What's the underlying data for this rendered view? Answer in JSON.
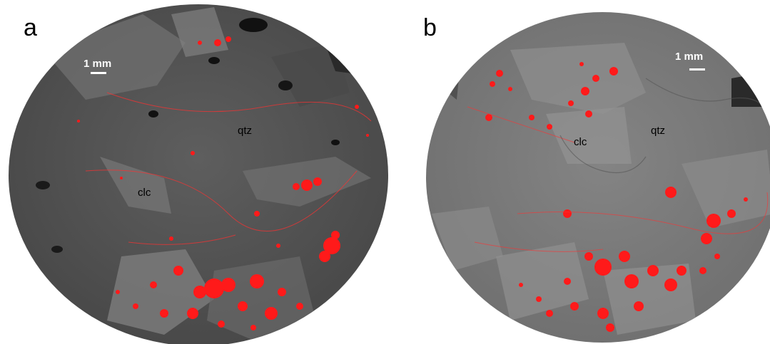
{
  "panels": [
    {
      "label": "a",
      "scale_text": "1 mm",
      "minerals": {
        "qtz": "qtz",
        "clc": "clc"
      }
    },
    {
      "label": "b",
      "scale_text": "1 mm",
      "minerals": {
        "qtz": "qtz",
        "clc": "clc"
      }
    }
  ],
  "colors": {
    "matrix_a": "#5a5a5a",
    "matrix_b": "#7d7d7d",
    "highlight": "#ff1a1a",
    "pore": "#111111"
  }
}
